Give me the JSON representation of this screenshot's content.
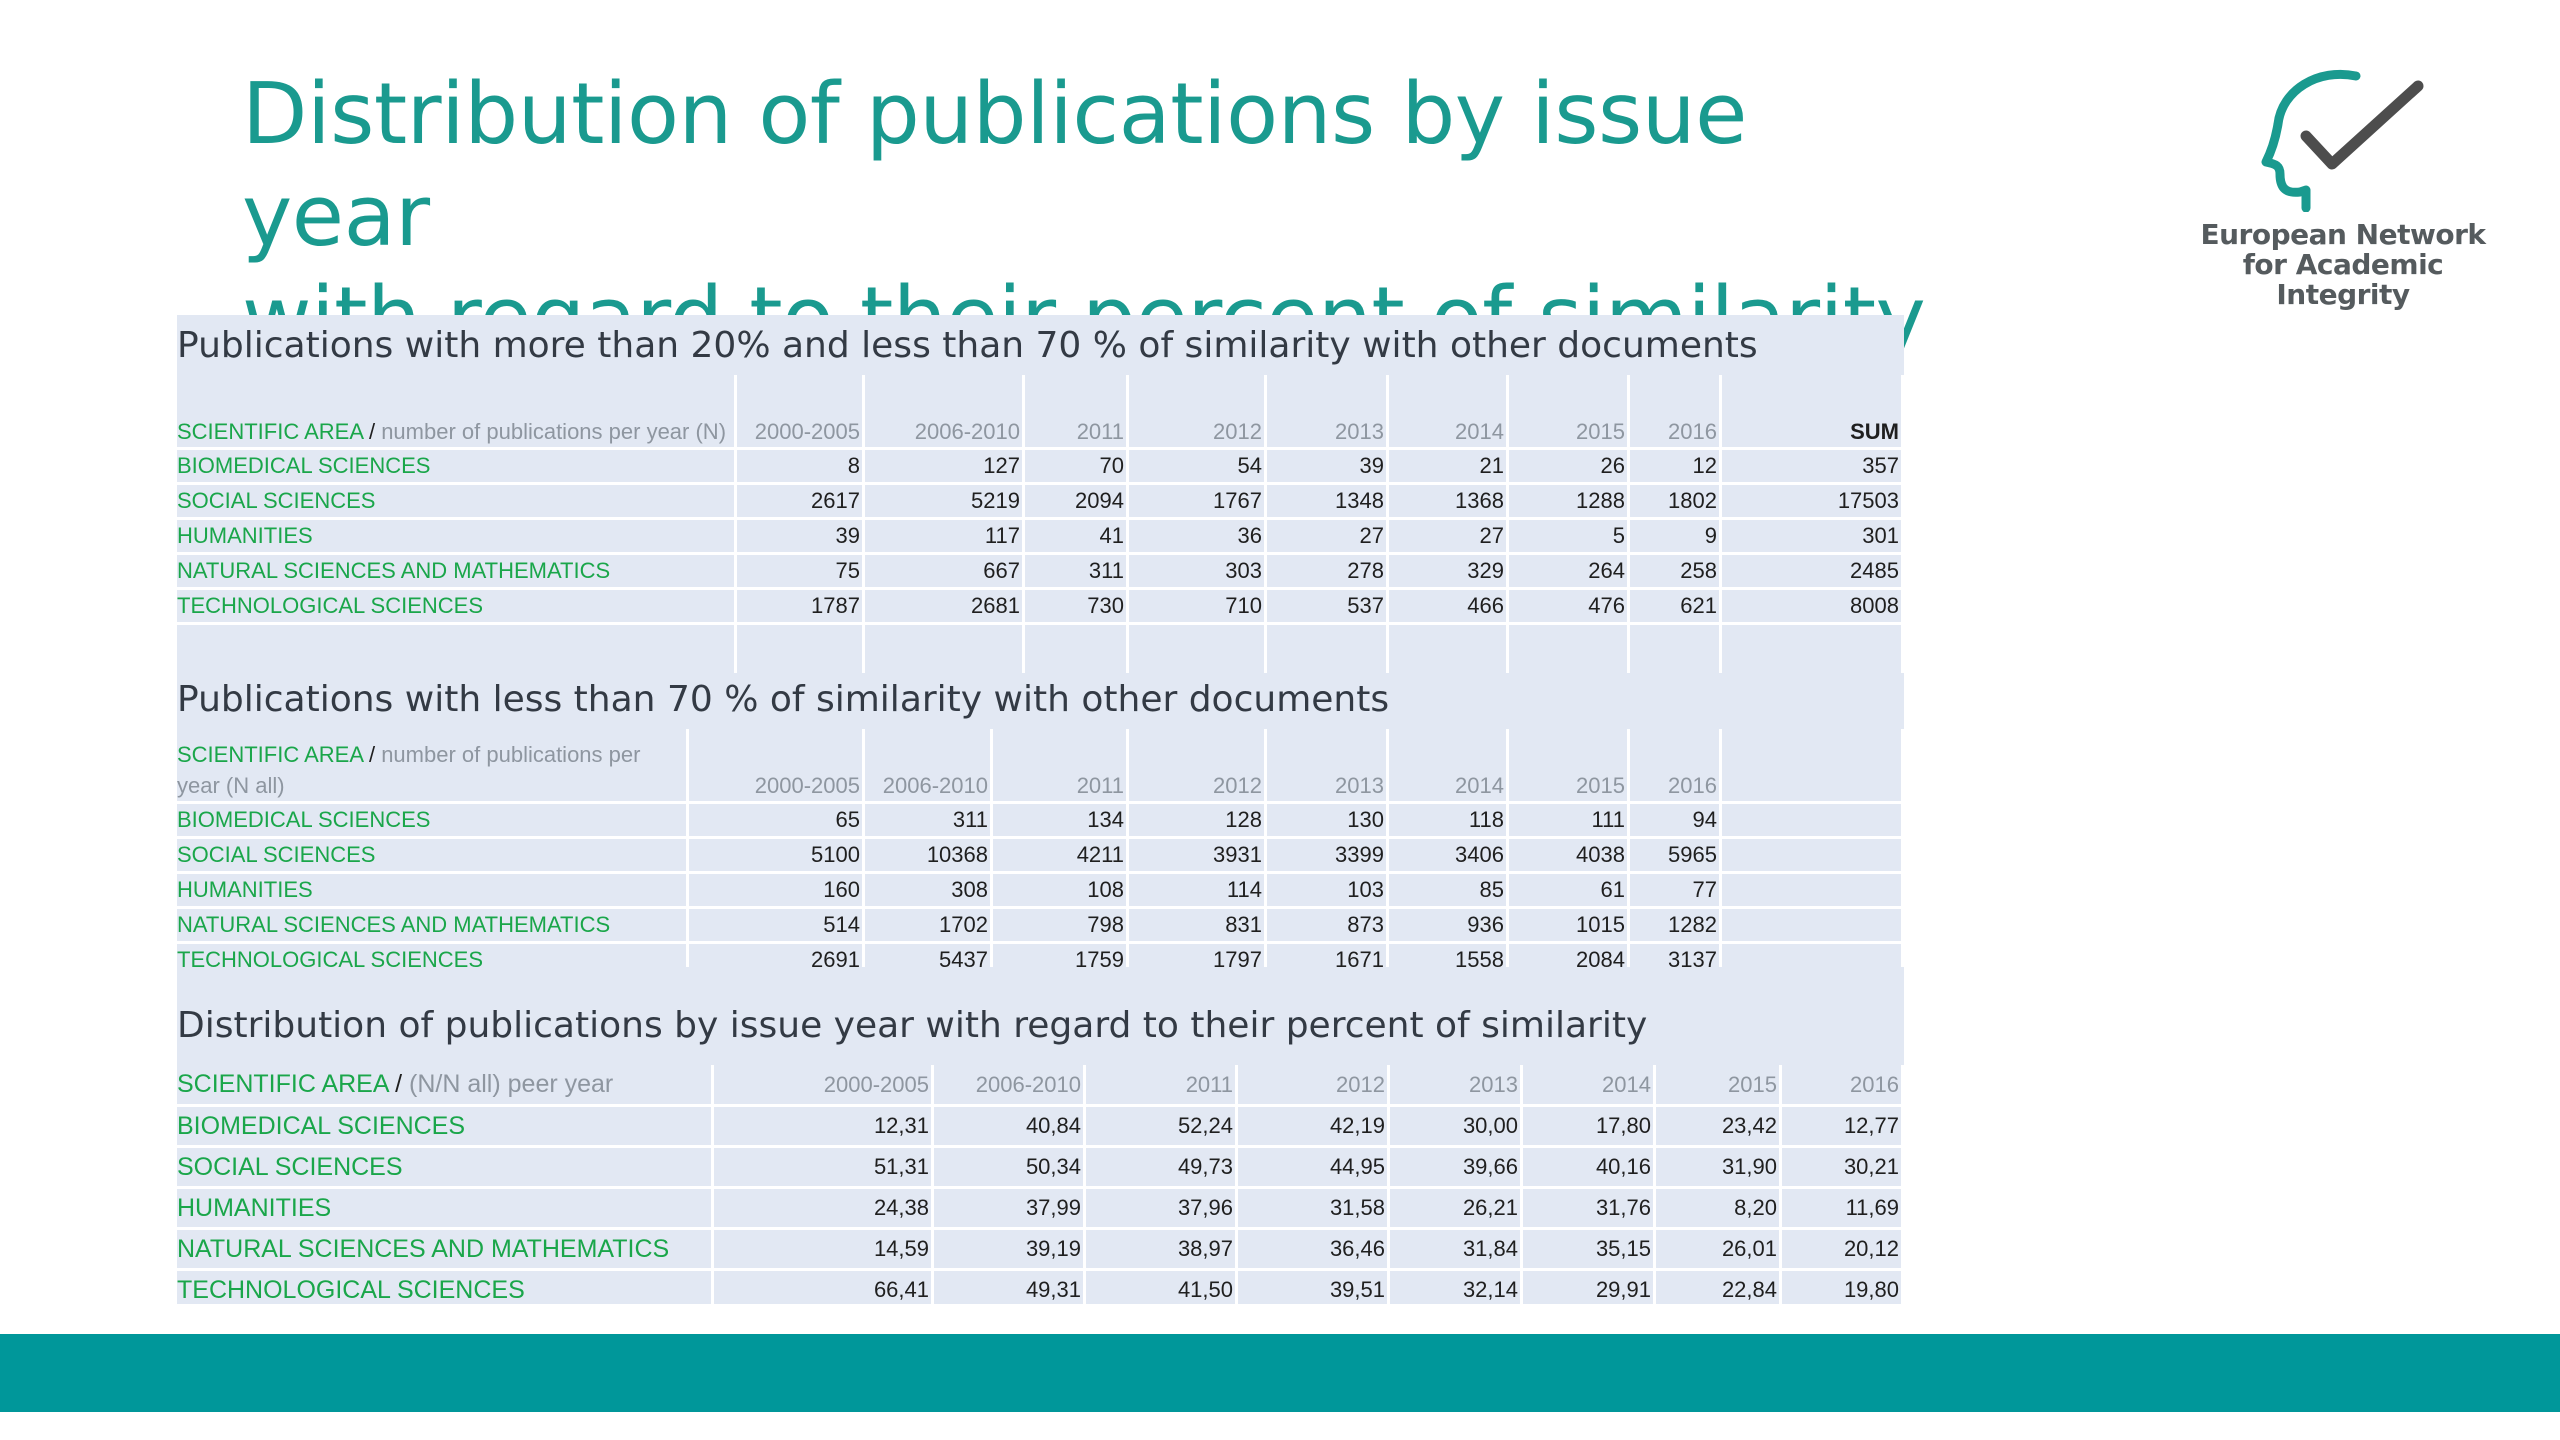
{
  "title": {
    "line1": "Distribution of publications by issue year",
    "line2": "with regard to their percent of  similarity"
  },
  "logo": {
    "line1": "European Network",
    "line2": "for Academic",
    "line3": "Integrity",
    "icon": "head-checkmark-icon",
    "color": "#1a9a8f"
  },
  "colors": {
    "title": "#1a9a8f",
    "area_label": "#1aa64a",
    "band": "#e2e8f3",
    "footer": "#00979a"
  },
  "table1": {
    "caption": "Publications with more than 20% and less than 70 % of similarity with other documents",
    "header": {
      "area_label": "SCIENTIFIC AREA",
      "slash": "/",
      "metric_label": " number of publications per year (N)",
      "years": [
        "2000-2005",
        "2006-2010",
        "2011",
        "2012",
        "2013",
        "2014",
        "2015",
        "2016"
      ],
      "sum": "SUM"
    },
    "rows": [
      {
        "area": "BIOMEDICAL SCIENCES",
        "values": [
          "8",
          "127",
          "70",
          "54",
          "39",
          "21",
          "26",
          "12"
        ],
        "sum": "357"
      },
      {
        "area": "SOCIAL SCIENCES",
        "values": [
          "2617",
          "5219",
          "2094",
          "1767",
          "1348",
          "1368",
          "1288",
          "1802"
        ],
        "sum": "17503"
      },
      {
        "area": "HUMANITIES",
        "values": [
          "39",
          "117",
          "41",
          "36",
          "27",
          "27",
          "5",
          "9"
        ],
        "sum": "301"
      },
      {
        "area": "NATURAL SCIENCES AND MATHEMATICS",
        "values": [
          "75",
          "667",
          "311",
          "303",
          "278",
          "329",
          "264",
          "258"
        ],
        "sum": "2485"
      },
      {
        "area": "TECHNOLOGICAL SCIENCES",
        "values": [
          "1787",
          "2681",
          "730",
          "710",
          "537",
          "466",
          "476",
          "621"
        ],
        "sum": "8008"
      }
    ]
  },
  "table2": {
    "caption": "Publications with  less than 70 % of similarity with other documents",
    "header": {
      "area_label": "SCIENTIFIC AREA",
      "slash": "/",
      "metric_label": " number of  publications per year (N all)",
      "years": [
        "2000-2005",
        "2006-2010",
        "2011",
        "2012",
        "2013",
        "2014",
        "2015",
        "2016"
      ]
    },
    "rows": [
      {
        "area": "BIOMEDICAL SCIENCES",
        "values": [
          "65",
          "311",
          "134",
          "128",
          "130",
          "118",
          "111",
          "94"
        ]
      },
      {
        "area": "SOCIAL SCIENCES",
        "values": [
          "5100",
          "10368",
          "4211",
          "3931",
          "3399",
          "3406",
          "4038",
          "5965"
        ]
      },
      {
        "area": "HUMANITIES",
        "values": [
          "160",
          "308",
          "108",
          "114",
          "103",
          "85",
          "61",
          "77"
        ]
      },
      {
        "area": "NATURAL SCIENCES AND MATHEMATICS",
        "values": [
          "514",
          "1702",
          "798",
          "831",
          "873",
          "936",
          "1015",
          "1282"
        ]
      },
      {
        "area": "TECHNOLOGICAL SCIENCES",
        "values": [
          "2691",
          "5437",
          "1759",
          "1797",
          "1671",
          "1558",
          "2084",
          "3137"
        ]
      }
    ]
  },
  "table3": {
    "caption": "Distribution of publications by issue year with regard to their percent of  similarity",
    "header": {
      "area_label": "SCIENTIFIC AREA",
      "slash": "/",
      "metric_label": " (N/N all) peer year",
      "years": [
        "2000-2005",
        "2006-2010",
        "2011",
        "2012",
        "2013",
        "2014",
        "2015",
        "2016"
      ]
    },
    "rows": [
      {
        "area": "BIOMEDICAL SCIENCES",
        "values": [
          "12,31",
          "40,84",
          "52,24",
          "42,19",
          "30,00",
          "17,80",
          "23,42",
          "12,77"
        ]
      },
      {
        "area": "SOCIAL SCIENCES",
        "values": [
          "51,31",
          "50,34",
          "49,73",
          "44,95",
          "39,66",
          "40,16",
          "31,90",
          "30,21"
        ]
      },
      {
        "area": "HUMANITIES",
        "values": [
          "24,38",
          "37,99",
          "37,96",
          "31,58",
          "26,21",
          "31,76",
          "8,20",
          "11,69"
        ]
      },
      {
        "area": "NATURAL SCIENCES AND MATHEMATICS",
        "values": [
          "14,59",
          "39,19",
          "38,97",
          "36,46",
          "31,84",
          "35,15",
          "26,01",
          "20,12"
        ]
      },
      {
        "area": "TECHNOLOGICAL SCIENCES",
        "values": [
          "66,41",
          "49,31",
          "41,50",
          "39,51",
          "32,14",
          "29,91",
          "22,84",
          "19,80"
        ]
      }
    ]
  }
}
